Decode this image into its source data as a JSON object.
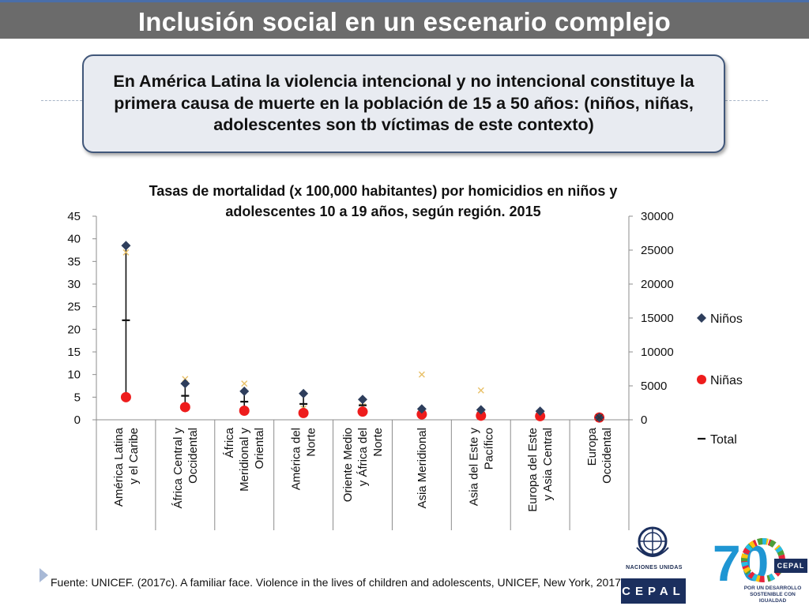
{
  "slide": {
    "title": "Inclusión social en un escenario complejo",
    "callout": "En América Latina  la violencia intencional y no intencional constituye la primera causa de muerte en la población de 15 a 50 años: (niños, niñas, adolescentes son tb víctimas de este contexto)",
    "source": "Fuente: UNICEF. (2017c). A familiar face. Violence in the lives of children and adolescents, UNICEF, New York, 2017",
    "colors": {
      "title_bar": "#6b6b6b",
      "accent_line": "#4a6ea9",
      "callout_border": "#41577a",
      "callout_fill": "#e8ebf1"
    }
  },
  "chart_data": {
    "type": "scatter",
    "title_lines": [
      "Tasas de mortalidad (x 100,000 habitantes) por homicidios en niños y",
      "adolescentes 10 a 19 años, según región. 2015"
    ],
    "categories": [
      [
        "América Latina",
        "y el Caribe"
      ],
      [
        "África Central y",
        "Occidental"
      ],
      [
        "África",
        "Meridional y",
        "Oriental"
      ],
      [
        "América del",
        "Norte"
      ],
      [
        "Oriente Medio",
        "y África del",
        "Norte"
      ],
      [
        "Asia Meridional"
      ],
      [
        "Asia del Este y",
        "Pacífico"
      ],
      [
        "Europa del Este",
        "y Asia Central"
      ],
      [
        "Europa",
        "Occidental"
      ]
    ],
    "y_left": {
      "ylim": [
        0,
        45
      ],
      "ticks": [
        "0",
        "5",
        "10",
        "15",
        "20",
        "25",
        "30",
        "35",
        "40",
        "45"
      ]
    },
    "y_right": {
      "ylim": [
        0,
        30000
      ],
      "ticks": [
        "0",
        "5000",
        "10000",
        "15000",
        "20000",
        "25000",
        "30000"
      ]
    },
    "series": [
      {
        "name": "Niños",
        "marker": "diamond",
        "color": "#2e3e5c",
        "values": [
          38.5,
          8,
          6.3,
          5.8,
          4.5,
          2.4,
          2.2,
          1.9,
          0.5
        ]
      },
      {
        "name": "Niñas",
        "marker": "circle",
        "color": "#ee1c1c",
        "values": [
          5,
          2.8,
          2,
          1.5,
          1.8,
          1.2,
          0.9,
          0.8,
          0.5
        ]
      },
      {
        "name": "Total",
        "marker": "dash",
        "color": "#111111",
        "values": [
          22,
          5.3,
          4,
          3.5,
          3.2,
          1.8,
          1.6,
          1.4,
          0.5
        ]
      }
    ],
    "secondary_marks": {
      "marker": "x",
      "color": "#e8c068",
      "values": [
        37,
        9,
        8,
        2.5,
        3,
        10,
        6.5,
        1,
        0.5
      ]
    },
    "ranges": {
      "low": [
        5,
        2.8,
        2,
        1.5,
        1.8,
        1.2,
        0.9,
        0.8,
        0.5
      ],
      "high": [
        38.5,
        8,
        6.3,
        5.8,
        4.5,
        2.4,
        2.2,
        1.9,
        0.5
      ]
    },
    "legend_placement": "right",
    "grid": false
  },
  "logos": {
    "un_label": "NACIONES UNIDAS",
    "cepal_label": "CEPAL",
    "anniversary_number": "70",
    "anniversary_tag": "CEPAL",
    "anniversary_caption": [
      "POR UN DESARROLLO",
      "SOSTENIBLE CON IGUALDAD"
    ]
  }
}
